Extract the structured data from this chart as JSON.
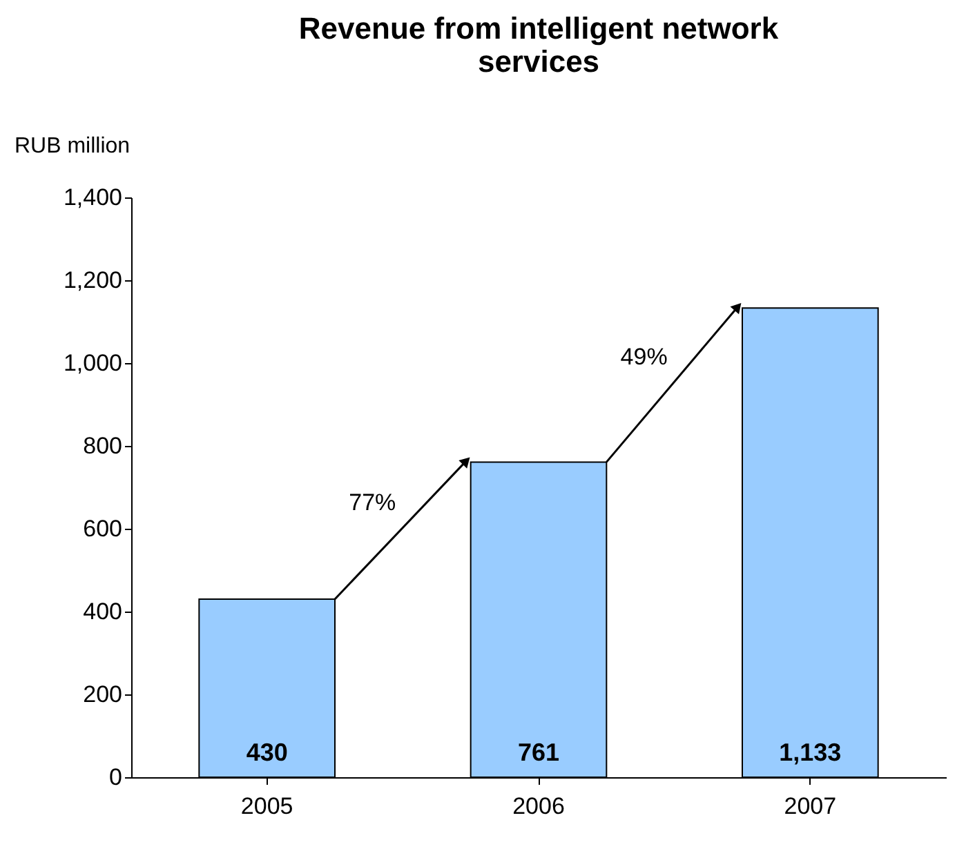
{
  "chart_data": {
    "type": "bar",
    "title": "Revenue from intelligent network services",
    "ylabel": "RUB million",
    "categories": [
      "2005",
      "2006",
      "2007"
    ],
    "values": [
      430,
      761,
      1133
    ],
    "value_labels": [
      "430",
      "761",
      "1,133"
    ],
    "color": "#99ccff",
    "ylim": [
      0,
      1400
    ],
    "yticks": [
      0,
      200,
      400,
      600,
      800,
      {
        "value": 1000,
        "label": "1,000"
      },
      {
        "value": 1200,
        "label": "1,200"
      },
      {
        "value": 1400,
        "label": "1,400"
      }
    ],
    "annotations": [
      "77%",
      "49%"
    ],
    "grid": false
  }
}
